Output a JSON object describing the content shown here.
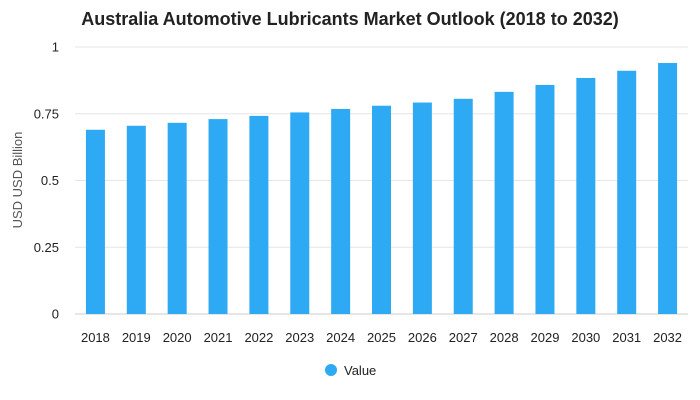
{
  "chart_data": {
    "type": "bar",
    "title": "Australia Automotive Lubricants Market Outlook (2018 to 2032)",
    "ylabel": "USD USD Billion",
    "xlabel": "",
    "ylim": [
      0,
      1
    ],
    "yticks": [
      {
        "value": 0,
        "label": "0"
      },
      {
        "value": 0.25,
        "label": "0.25"
      },
      {
        "value": 0.5,
        "label": "0.5"
      },
      {
        "value": 0.75,
        "label": "0.75"
      },
      {
        "value": 1,
        "label": "1"
      }
    ],
    "grid": true,
    "legend_position": "bottom-center",
    "categories": [
      "2018",
      "2019",
      "2020",
      "2021",
      "2022",
      "2023",
      "2024",
      "2025",
      "2026",
      "2027",
      "2028",
      "2029",
      "2030",
      "2031",
      "2032"
    ],
    "series": [
      {
        "name": "Value",
        "color": "#2eaaf5",
        "values": [
          0.69,
          0.705,
          0.716,
          0.73,
          0.742,
          0.755,
          0.768,
          0.78,
          0.792,
          0.806,
          0.832,
          0.858,
          0.884,
          0.911,
          0.94
        ]
      }
    ]
  }
}
